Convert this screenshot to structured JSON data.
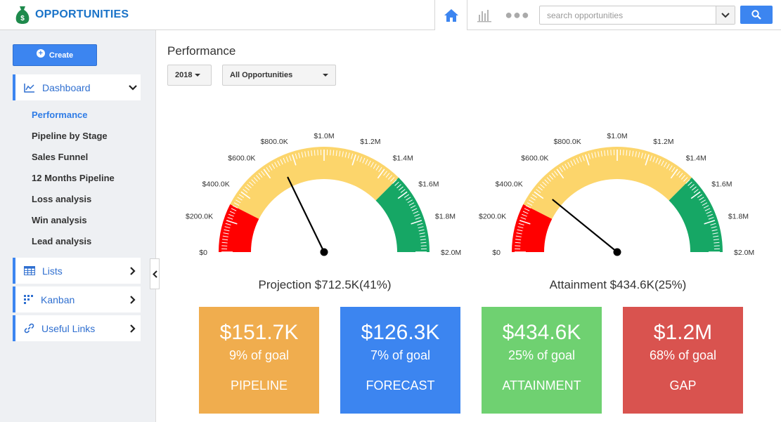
{
  "app": {
    "title": "OPPORTUNITIES"
  },
  "search": {
    "placeholder": "search opportunities"
  },
  "sidebar": {
    "create_label": "Create",
    "dashboard_label": "Dashboard",
    "sub_items": [
      {
        "label": "Performance",
        "active": true
      },
      {
        "label": "Pipeline by Stage",
        "active": false
      },
      {
        "label": "Sales Funnel",
        "active": false
      },
      {
        "label": "12 Months Pipeline",
        "active": false
      },
      {
        "label": "Loss analysis",
        "active": false
      },
      {
        "label": "Win analysis",
        "active": false
      },
      {
        "label": "Lead analysis",
        "active": false
      }
    ],
    "lists_label": "Lists",
    "kanban_label": "Kanban",
    "useful_links_label": "Useful Links"
  },
  "main": {
    "title": "Performance",
    "year_select": "2018",
    "filter_select": "All Opportunities"
  },
  "gauges": {
    "tick_labels": [
      "$0",
      "$200.0K",
      "$400.0K",
      "$600.0K",
      "$800.0K",
      "$1.0M",
      "$1.2M",
      "$1.4M",
      "$1.6M",
      "$1.8M",
      "$2.0M"
    ],
    "max": 2000000,
    "red_end": 300000,
    "yellow_end": 1500000,
    "projection": {
      "caption": "Projection $712.5K(41%)",
      "value": 712500
    },
    "attainment": {
      "caption": "Attainment $434.6K(25%)",
      "value": 434600
    }
  },
  "cards": [
    {
      "amount": "$151.7K",
      "pct": "9% of goal",
      "name": "PIPELINE",
      "color": "#f0ad4e"
    },
    {
      "amount": "$126.3K",
      "pct": "7% of goal",
      "name": "FORECAST",
      "color": "#3c85f0"
    },
    {
      "amount": "$434.6K",
      "pct": "25% of goal",
      "name": "ATTAINMENT",
      "color": "#6fd171"
    },
    {
      "amount": "$1.2M",
      "pct": "68% of goal",
      "name": "GAP",
      "color": "#d9534f"
    }
  ],
  "colors": {
    "accent": "#3c85f0",
    "red": "#ff0000",
    "yellow": "#fcd56b",
    "green": "#16a765"
  }
}
